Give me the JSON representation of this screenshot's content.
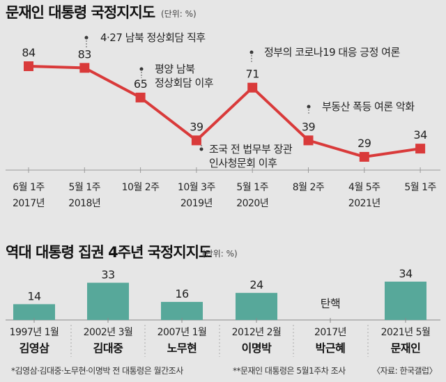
{
  "chart_data": [
    {
      "type": "line",
      "title": "문재인 대통령 국정지지도",
      "unit": "(단위: %)",
      "categories": [
        [
          "6월 1주",
          "2017년"
        ],
        [
          "5월 1주",
          "2018년"
        ],
        [
          "10월 2주",
          ""
        ],
        [
          "10월 3주",
          "2019년"
        ],
        [
          "5월 1주",
          "2020년"
        ],
        [
          "8월 2주",
          ""
        ],
        [
          "4월 5주",
          "2021년"
        ],
        [
          "5월 1주",
          ""
        ]
      ],
      "values": [
        84,
        83,
        65,
        39,
        71,
        39,
        29,
        34
      ],
      "ylim": [
        20,
        90
      ],
      "color": "#d93a3a",
      "annotations": [
        {
          "index": 1,
          "lines": [
            "4·27 남북 정상회담 직후"
          ]
        },
        {
          "index": 2,
          "lines": [
            "평양 남북",
            "정상회담 이후"
          ]
        },
        {
          "index": 3,
          "lines": [
            "조국 전 법무부 장관",
            "인사청문회 이후"
          ]
        },
        {
          "index": 4,
          "lines": [
            "정부의 코로나19 대응 긍정 여론"
          ]
        },
        {
          "index": 5,
          "lines": [
            "부동산 폭등 여론 악화"
          ]
        }
      ]
    },
    {
      "type": "bar",
      "title": "역대 대통령 집권 4주년 국정지지도",
      "unit": "(단위: %)",
      "categories": [
        "1997년 1월",
        "2002년 3월",
        "2007년 1월",
        "2012년 2월",
        "2017년",
        "2021년 5월"
      ],
      "presidents": [
        "김영삼",
        "김대중",
        "노무현",
        "이명박",
        "박근혜",
        "문재인"
      ],
      "values": [
        14,
        33,
        16,
        24,
        null,
        34
      ],
      "labels": [
        "14",
        "33",
        "16",
        "24",
        "탄핵",
        "34"
      ],
      "ylim": [
        0,
        34
      ],
      "color": "#57a89a"
    }
  ],
  "footnotes": {
    "left": "*김영삼·김대중·노무현·이명박 전 대통령은 월간조사",
    "middle": "**문재인 대통령은 5월1주차 조사",
    "source": "〈자료: 한국갤럽〉"
  }
}
